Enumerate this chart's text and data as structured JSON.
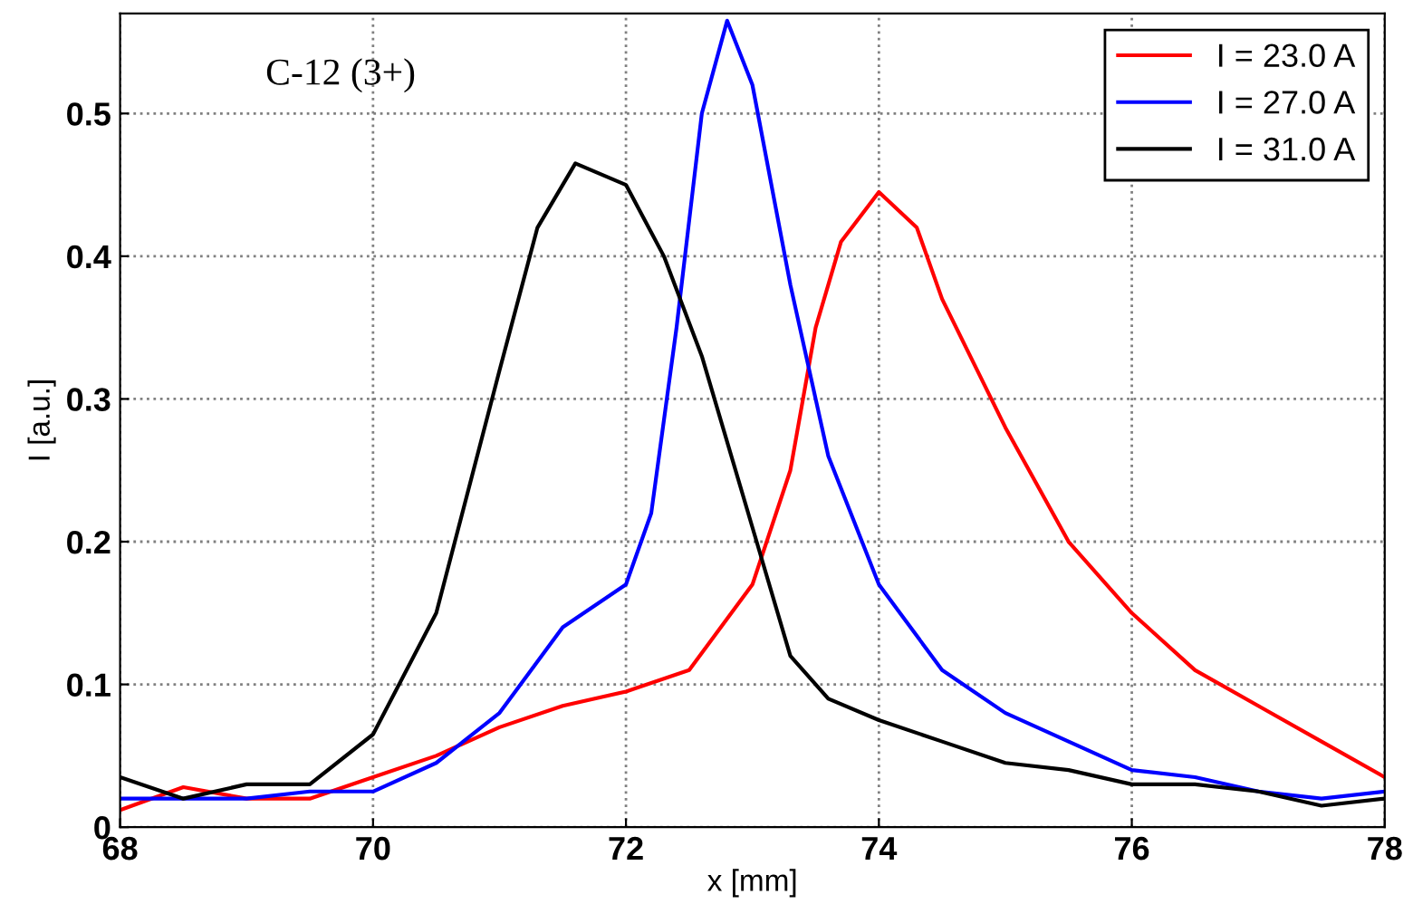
{
  "chart_data": {
    "type": "line",
    "xlabel": "x [mm]",
    "ylabel": "I [a.u.]",
    "annotations": [
      "C-12 (3+)"
    ],
    "xlim": [
      68,
      78
    ],
    "ylim": [
      0,
      0.57
    ],
    "xticks": [
      68,
      70,
      72,
      74,
      76,
      78
    ],
    "yticks": [
      0,
      0.1,
      0.2,
      0.3,
      0.4,
      0.5
    ],
    "grid": true,
    "legend": "top right",
    "line_style": "solid",
    "marker": "none",
    "series": [
      {
        "name": "I = 23.0 A",
        "color": "#ff0000",
        "x": [
          68,
          68.5,
          69,
          69.5,
          70,
          70.5,
          71,
          71.5,
          72,
          72.5,
          73,
          73.3,
          73.5,
          73.7,
          74,
          74.3,
          74.5,
          75,
          75.5,
          76,
          76.5,
          77,
          77.5,
          78
        ],
        "values": [
          0.012,
          0.028,
          0.02,
          0.02,
          0.035,
          0.05,
          0.07,
          0.085,
          0.095,
          0.11,
          0.17,
          0.25,
          0.35,
          0.41,
          0.445,
          0.42,
          0.37,
          0.28,
          0.2,
          0.15,
          0.11,
          0.085,
          0.06,
          0.035
        ]
      },
      {
        "name": "I = 27.0 A",
        "color": "#0000ff",
        "x": [
          68,
          68.5,
          69,
          69.5,
          70,
          70.5,
          71,
          71.5,
          72,
          72.2,
          72.4,
          72.6,
          72.8,
          73,
          73.3,
          73.6,
          74,
          74.5,
          75,
          75.5,
          76,
          76.5,
          77,
          77.5,
          78
        ],
        "values": [
          0.02,
          0.02,
          0.02,
          0.025,
          0.025,
          0.045,
          0.08,
          0.14,
          0.17,
          0.22,
          0.35,
          0.5,
          0.565,
          0.52,
          0.38,
          0.26,
          0.17,
          0.11,
          0.08,
          0.06,
          0.04,
          0.035,
          0.025,
          0.02,
          0.025
        ]
      },
      {
        "name": "I = 31.0 A",
        "color": "#000000",
        "x": [
          68,
          68.5,
          69,
          69.5,
          70,
          70.5,
          71,
          71.3,
          71.6,
          72,
          72.3,
          72.6,
          73,
          73.3,
          73.6,
          74,
          74.5,
          75,
          75.5,
          76,
          76.5,
          77,
          77.5,
          78
        ],
        "values": [
          0.035,
          0.02,
          0.03,
          0.03,
          0.065,
          0.15,
          0.32,
          0.42,
          0.465,
          0.45,
          0.4,
          0.33,
          0.21,
          0.12,
          0.09,
          0.075,
          0.06,
          0.045,
          0.04,
          0.03,
          0.03,
          0.025,
          0.015,
          0.02
        ]
      }
    ]
  }
}
